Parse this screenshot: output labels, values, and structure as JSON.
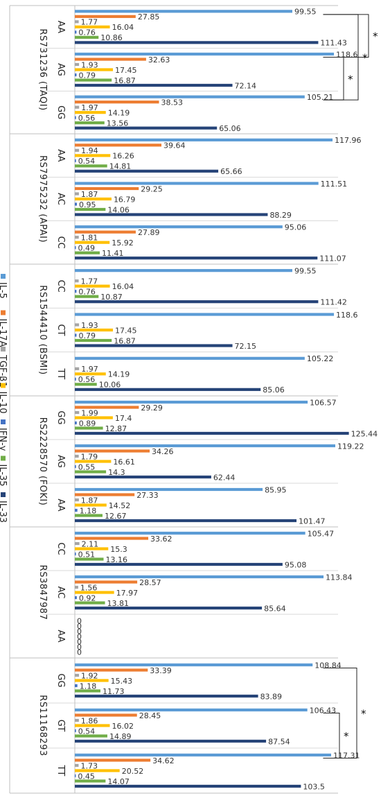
{
  "chart_data": {
    "type": "bar",
    "orientation": "horizontal",
    "legend": [
      {
        "name": "IL-5",
        "color": "#5b9bd5"
      },
      {
        "name": "IL-17A",
        "color": "#ed7d31"
      },
      {
        "name": "TGF-β1",
        "color": "#a5a5a5"
      },
      {
        "name": "IL-10",
        "color": "#ffc000"
      },
      {
        "name": "IFN-γ",
        "color": "#4472c4"
      },
      {
        "name": "IL-35",
        "color": "#70ad47"
      },
      {
        "name": "IL-33",
        "color": "#264478"
      }
    ],
    "legend_position": "left",
    "xlim": [
      0,
      130
    ],
    "groups": [
      {
        "snp": "RS731236 (TAQI)",
        "genotypes": [
          {
            "label": "AA",
            "values": [
              99.55,
              27.85,
              1.77,
              16.04,
              0.76,
              10.86,
              111.43
            ]
          },
          {
            "label": "AG",
            "values": [
              118.6,
              32.63,
              1.93,
              17.45,
              0.79,
              16.87,
              72.14
            ]
          },
          {
            "label": "GG",
            "values": [
              105.21,
              38.53,
              1.97,
              14.19,
              0.56,
              13.56,
              65.06
            ]
          }
        ]
      },
      {
        "snp": "RS7975232 (APAI)",
        "genotypes": [
          {
            "label": "AA",
            "values": [
              117.96,
              39.64,
              1.94,
              16.26,
              0.54,
              14.81,
              65.66
            ]
          },
          {
            "label": "AC",
            "values": [
              111.51,
              29.25,
              1.87,
              16.79,
              0.95,
              14.06,
              88.29
            ]
          },
          {
            "label": "CC",
            "values": [
              95.06,
              27.89,
              1.81,
              15.92,
              0.49,
              11.41,
              111.07
            ]
          }
        ]
      },
      {
        "snp": "RS1544410 (BSMI)",
        "genotypes": [
          {
            "label": "CC",
            "values": [
              99.55,
              null,
              1.77,
              16.04,
              0.76,
              10.87,
              111.42
            ]
          },
          {
            "label": "CT",
            "values": [
              118.6,
              null,
              1.93,
              17.45,
              0.79,
              16.87,
              72.15
            ]
          },
          {
            "label": "TT",
            "values": [
              105.22,
              null,
              1.97,
              14.19,
              0.56,
              10.06,
              85.06
            ]
          }
        ]
      },
      {
        "snp": "RS2228570 (FOKI)",
        "genotypes": [
          {
            "label": "GG",
            "values": [
              106.57,
              29.29,
              1.99,
              17.4,
              0.89,
              12.87,
              125.44
            ]
          },
          {
            "label": "AG",
            "values": [
              119.22,
              34.26,
              1.79,
              16.61,
              0.55,
              14.3,
              62.44
            ]
          },
          {
            "label": "AA",
            "values": [
              85.95,
              27.33,
              1.87,
              14.52,
              1.18,
              12.67,
              101.47
            ]
          }
        ]
      },
      {
        "snp": "RS3847987",
        "genotypes": [
          {
            "label": "CC",
            "values": [
              105.47,
              33.62,
              2.11,
              15.3,
              0.51,
              13.16,
              95.08
            ]
          },
          {
            "label": "AC",
            "values": [
              113.84,
              28.57,
              1.56,
              17.97,
              0.92,
              13.81,
              85.64
            ]
          },
          {
            "label": "AA",
            "values": [
              0,
              0,
              0,
              0,
              0,
              0,
              0
            ]
          }
        ]
      },
      {
        "snp": "RS11168293",
        "genotypes": [
          {
            "label": "GG",
            "values": [
              108.84,
              33.39,
              1.92,
              15.43,
              1.18,
              11.73,
              83.89
            ]
          },
          {
            "label": "GT",
            "values": [
              106.43,
              28.45,
              1.86,
              16.02,
              0.54,
              14.89,
              87.54
            ]
          },
          {
            "label": "TT",
            "values": [
              117.31,
              34.62,
              1.73,
              20.52,
              0.45,
              14.07,
              103.5
            ]
          }
        ]
      }
    ],
    "annotations": [
      {
        "text": "*",
        "group": 0,
        "from": "AA",
        "to": "AG"
      },
      {
        "text": "*",
        "group": 0,
        "from": "AA",
        "to": "GG"
      },
      {
        "text": "*",
        "group": 0,
        "from": "AG",
        "to": "GG"
      },
      {
        "text": "*",
        "group": 5,
        "from": "GG",
        "to": "TT"
      },
      {
        "text": "*",
        "group": 5,
        "from": "GT",
        "to": "TT"
      }
    ]
  }
}
